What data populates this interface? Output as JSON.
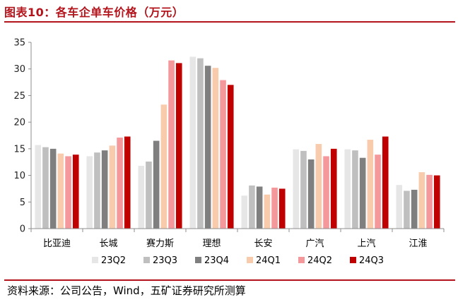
{
  "figure": {
    "title": "图表10：各车企单车价格（万元）",
    "source": "资料来源：公司公告，Wind，五矿证券研究所测算"
  },
  "chart_data": {
    "type": "bar",
    "title": "各车企单车价格（万元）",
    "xlabel": "",
    "ylabel": "",
    "ylim": [
      0,
      35
    ],
    "yticks": [
      0,
      5,
      10,
      15,
      20,
      25,
      30,
      35
    ],
    "grid": false,
    "legend_position": "bottom",
    "categories": [
      "比亚迪",
      "长城",
      "赛力斯",
      "理想",
      "长安",
      "广汽",
      "上汽",
      "江淮"
    ],
    "series": [
      {
        "name": "23Q2",
        "color": "#e6e6e6",
        "values": [
          15.7,
          13.6,
          11.8,
          32.3,
          6.2,
          14.9,
          14.9,
          8.2
        ]
      },
      {
        "name": "23Q3",
        "color": "#bfbfbf",
        "values": [
          15.3,
          14.3,
          12.6,
          32.0,
          8.1,
          14.6,
          14.7,
          7.1
        ]
      },
      {
        "name": "23Q4",
        "color": "#7f7f7f",
        "values": [
          15.0,
          14.7,
          16.5,
          30.6,
          7.9,
          13.0,
          13.3,
          7.3
        ]
      },
      {
        "name": "24Q1",
        "color": "#f8cbad",
        "values": [
          14.1,
          15.6,
          23.3,
          30.2,
          6.4,
          15.9,
          16.7,
          10.6
        ]
      },
      {
        "name": "24Q2",
        "color": "#f4989b",
        "values": [
          13.6,
          17.1,
          31.6,
          27.9,
          7.7,
          13.6,
          13.9,
          10.1
        ]
      },
      {
        "name": "24Q3",
        "color": "#c00000",
        "values": [
          13.9,
          17.3,
          31.1,
          27.0,
          7.5,
          15.0,
          17.3,
          10.0
        ]
      }
    ]
  }
}
